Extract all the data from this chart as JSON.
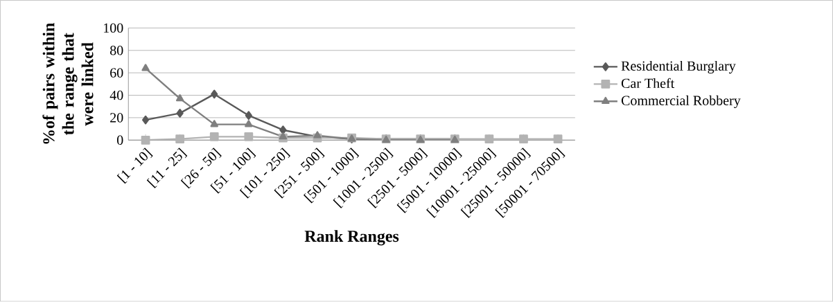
{
  "chart_data": {
    "type": "line",
    "xlabel": "Rank Ranges",
    "ylabel": "%of pairs within the range that were linked",
    "categories": [
      "[1 - 10]",
      "[11 - 25]",
      "[26 - 50]",
      "[51 - 100]",
      "[101 - 250]",
      "[251 - 500]",
      "[501 - 1000]",
      "[1001 - 2500]",
      "[2501 - 5000]",
      "[5001 - 10000]",
      "[10001 - 25000]",
      "[25001 - 50000]",
      "[50001 - 70500]"
    ],
    "series": [
      {
        "name": "Residential Burglary",
        "color": "#595959",
        "marker": "diamond",
        "values": [
          18,
          24,
          41,
          22,
          9,
          3,
          1,
          1,
          1,
          1,
          null,
          null,
          null
        ]
      },
      {
        "name": "Car Theft",
        "color": "#b3b3b3",
        "marker": "square",
        "values": [
          0,
          1,
          3,
          3,
          2,
          2,
          2,
          1,
          1,
          1,
          1,
          1,
          1
        ]
      },
      {
        "name": "Commercial Robbery",
        "color": "#7f7f7f",
        "marker": "triangle",
        "values": [
          64,
          37,
          14,
          14,
          3,
          4,
          1,
          0,
          0,
          0,
          null,
          null,
          null
        ]
      }
    ],
    "ylim": [
      0,
      100
    ],
    "yticks": [
      0,
      20,
      40,
      60,
      80,
      100
    ],
    "grid": "y",
    "legend": "right"
  }
}
